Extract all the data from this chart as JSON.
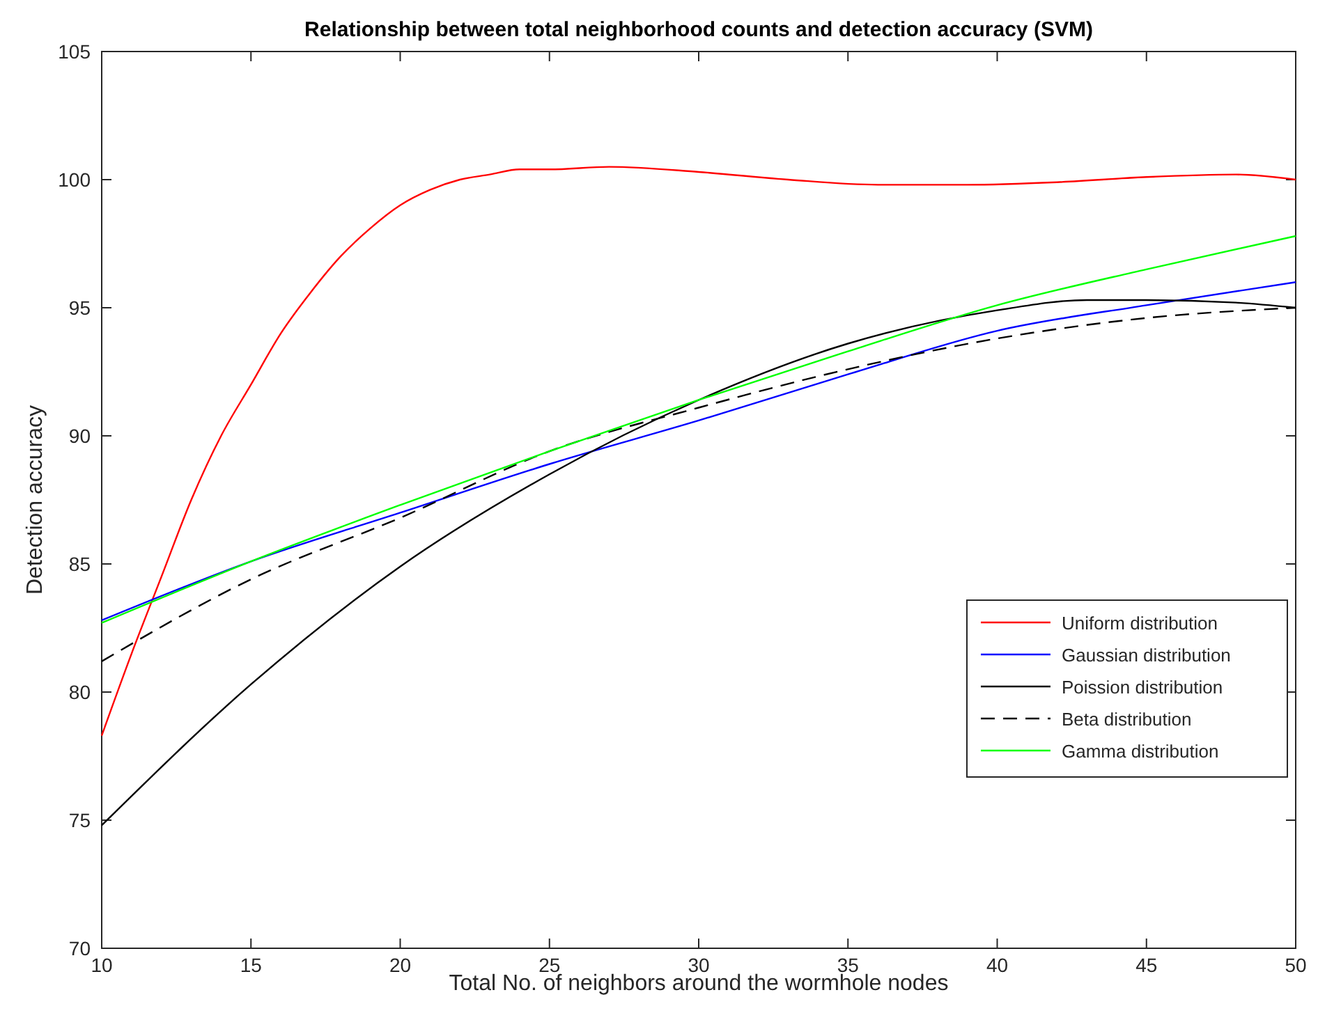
{
  "chart_data": {
    "type": "line",
    "title": "Relationship between total neighborhood counts and detection accuracy (SVM)",
    "xlabel": "Total No. of neighbors around the wormhole nodes",
    "ylabel": "Detection accuracy",
    "xlim": [
      10,
      50
    ],
    "ylim": [
      70,
      105
    ],
    "xticks": [
      10,
      15,
      20,
      25,
      30,
      35,
      40,
      45,
      50
    ],
    "yticks": [
      70,
      75,
      80,
      85,
      90,
      95,
      100,
      105
    ],
    "grid": false,
    "legend": "bottom right",
    "marker": "none",
    "series": [
      {
        "name": "Uniform distribution",
        "color": "#ff0000",
        "x": [
          10,
          11,
          12,
          13,
          14,
          15,
          16,
          17,
          18,
          19,
          20,
          21,
          22,
          23,
          24,
          25,
          27,
          30,
          33,
          36,
          39,
          42,
          45,
          48,
          50
        ],
        "values": [
          78.3,
          81.5,
          84.5,
          87.5,
          90,
          92,
          94,
          95.6,
          97,
          98.1,
          99,
          99.6,
          100,
          100.2,
          100.4,
          100.4,
          100.5,
          100.3,
          100,
          99.8,
          99.8,
          99.9,
          100.1,
          100.2,
          100
        ]
      },
      {
        "name": "Gaussian distribution",
        "color": "#0000ff",
        "x": [
          10,
          15,
          20,
          25,
          30,
          35,
          40,
          45,
          50
        ],
        "values": [
          82.8,
          85.1,
          87,
          88.9,
          90.6,
          92.4,
          94.1,
          95.1,
          96
        ]
      },
      {
        "name": "Poission distribution",
        "color": "#000000",
        "x": [
          10,
          15,
          20,
          25,
          30,
          35,
          40,
          43,
          45,
          48,
          50
        ],
        "values": [
          74.8,
          80.3,
          84.9,
          88.5,
          91.4,
          93.6,
          94.9,
          95.3,
          95.3,
          95.2,
          95
        ]
      },
      {
        "name": "Beta distribution",
        "color": "#000000",
        "line_style": "dashed",
        "x": [
          10,
          15,
          20,
          25,
          30,
          35,
          40,
          45,
          50
        ],
        "values": [
          81.2,
          84.4,
          86.8,
          89.4,
          91.1,
          92.6,
          93.8,
          94.6,
          95
        ]
      },
      {
        "name": "Gamma distribution",
        "color": "#00ff00",
        "x": [
          10,
          15,
          20,
          25,
          30,
          35,
          40,
          45,
          50
        ],
        "values": [
          82.7,
          85.1,
          87.3,
          89.4,
          91.4,
          93.3,
          95.1,
          96.5,
          97.8
        ]
      }
    ]
  }
}
